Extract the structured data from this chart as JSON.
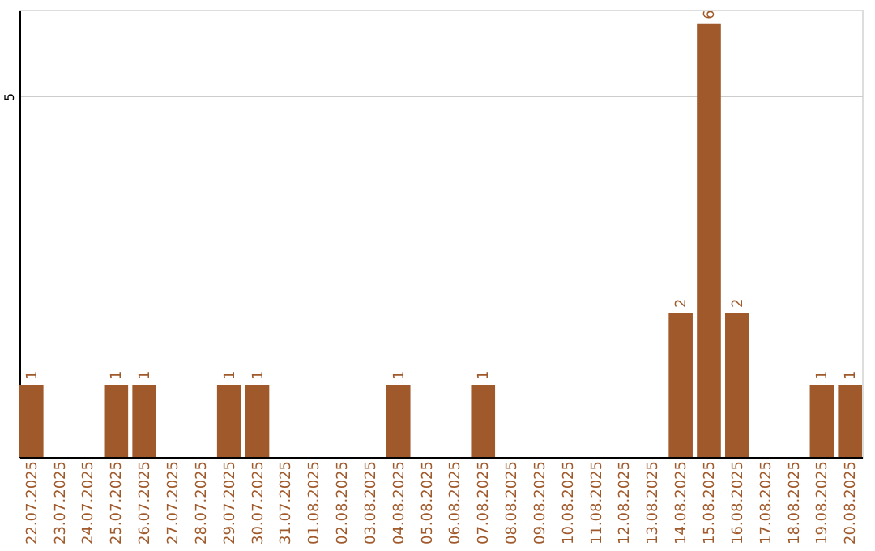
{
  "chart_data": {
    "type": "bar",
    "categories": [
      "22.07.2025",
      "23.07.2025",
      "24.07.2025",
      "25.07.2025",
      "26.07.2025",
      "27.07.2025",
      "28.07.2025",
      "29.07.2025",
      "30.07.2025",
      "31.07.2025",
      "01.08.2025",
      "02.08.2025",
      "03.08.2025",
      "04.08.2025",
      "05.08.2025",
      "06.08.2025",
      "07.08.2025",
      "08.08.2025",
      "09.08.2025",
      "10.08.2025",
      "11.08.2025",
      "12.08.2025",
      "13.08.2025",
      "14.08.2025",
      "15.08.2025",
      "16.08.2025",
      "17.08.2025",
      "18.08.2025",
      "19.08.2025",
      "20.08.2025"
    ],
    "values": [
      1,
      0,
      0,
      1,
      1,
      0,
      0,
      1,
      1,
      0,
      0,
      0,
      0,
      1,
      0,
      0,
      1,
      0,
      0,
      0,
      0,
      0,
      0,
      2,
      6,
      2,
      0,
      0,
      1,
      1
    ],
    "color": "#a0592a",
    "ylim": [
      0,
      6.2
    ],
    "yticks": [
      5
    ],
    "grid": "y",
    "value_labels": [
      "1",
      null,
      null,
      "1",
      "1",
      null,
      null,
      "1",
      "1",
      null,
      null,
      null,
      null,
      "1",
      null,
      null,
      "1",
      null,
      null,
      null,
      null,
      null,
      null,
      "2",
      "6",
      "2",
      null,
      null,
      "1",
      "1"
    ]
  }
}
